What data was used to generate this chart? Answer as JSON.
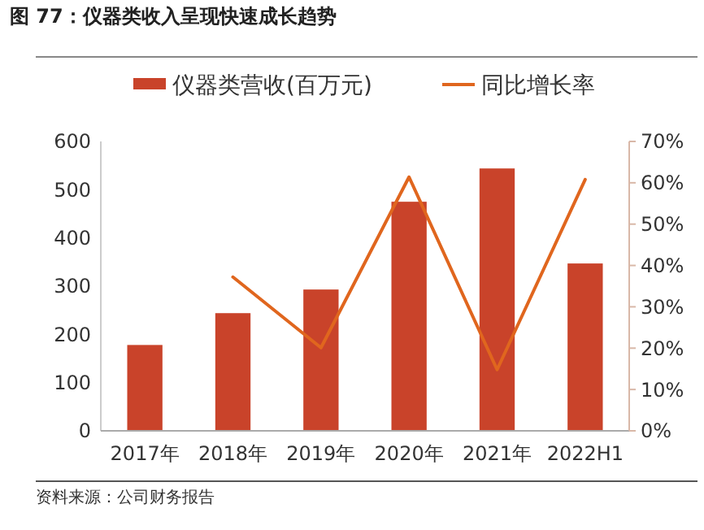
{
  "chart_data": {
    "type": "bar",
    "title": "图 77：仪器类收入呈现快速成长趋势",
    "categories": [
      "2017年",
      "2018年",
      "2019年",
      "2020年",
      "2021年",
      "2022H1"
    ],
    "series": [
      {
        "name": "仪器类营收(百万元)",
        "color": "#c9432a",
        "values": [
          178,
          244,
          293,
          475,
          544,
          347
        ]
      },
      {
        "name": "同比增长率",
        "type": "line",
        "axis": "y2",
        "color": "#e0661e",
        "values": [
          null,
          37.2,
          20.1,
          61.4,
          14.8,
          60.8
        ]
      }
    ],
    "ylim": [
      0,
      600
    ],
    "yticks": [
      0,
      100,
      200,
      300,
      400,
      500,
      600
    ],
    "y2lim": [
      0,
      70
    ],
    "y2ticks": [
      {
        "value": 0,
        "label": "0%"
      },
      {
        "value": 10,
        "label": "10%"
      },
      {
        "value": 20,
        "label": "20%"
      },
      {
        "value": 30,
        "label": "30%"
      },
      {
        "value": 40,
        "label": "40%"
      },
      {
        "value": 50,
        "label": "50%"
      },
      {
        "value": 60,
        "label": "60%"
      },
      {
        "value": 70,
        "label": "70%"
      }
    ],
    "legend": "top",
    "grid": false,
    "annotations": [
      "资料来源：公司财务报告"
    ]
  }
}
